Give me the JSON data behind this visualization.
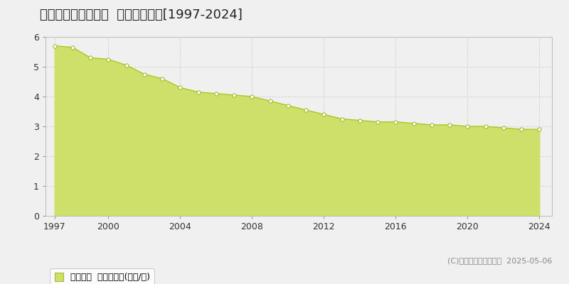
{
  "title": "秩父郡東秩父村御堂  基準地価推移[1997-2024]",
  "years": [
    1997,
    1998,
    1999,
    2000,
    2001,
    2002,
    2003,
    2004,
    2005,
    2006,
    2007,
    2008,
    2009,
    2010,
    2011,
    2012,
    2013,
    2014,
    2015,
    2016,
    2017,
    2018,
    2019,
    2020,
    2021,
    2022,
    2023,
    2024
  ],
  "values": [
    5.7,
    5.65,
    5.3,
    5.25,
    5.05,
    4.75,
    4.6,
    4.3,
    4.15,
    4.1,
    4.05,
    4.0,
    3.85,
    3.7,
    3.55,
    3.4,
    3.25,
    3.2,
    3.15,
    3.15,
    3.1,
    3.05,
    3.05,
    3.0,
    3.0,
    2.95,
    2.9,
    2.9
  ],
  "line_color": "#a8c820",
  "fill_color": "#cfe06a",
  "marker_facecolor": "#ffffff",
  "marker_edgecolor": "#a8b830",
  "ylim": [
    0,
    6
  ],
  "yticks": [
    0,
    1,
    2,
    3,
    4,
    5,
    6
  ],
  "xticks": [
    1997,
    2000,
    2004,
    2008,
    2012,
    2016,
    2020,
    2024
  ],
  "bg_color": "#f0f0f0",
  "plot_bg_color": "#f0f0f0",
  "grid_color": "#d0d0d0",
  "legend_label": "基準地価  平均坪単価(万円/坪)",
  "copyright_text": "(C)土地価格ドットコム  2025-05-06",
  "title_fontsize": 13,
  "axis_fontsize": 9,
  "legend_fontsize": 9,
  "copyright_fontsize": 8
}
